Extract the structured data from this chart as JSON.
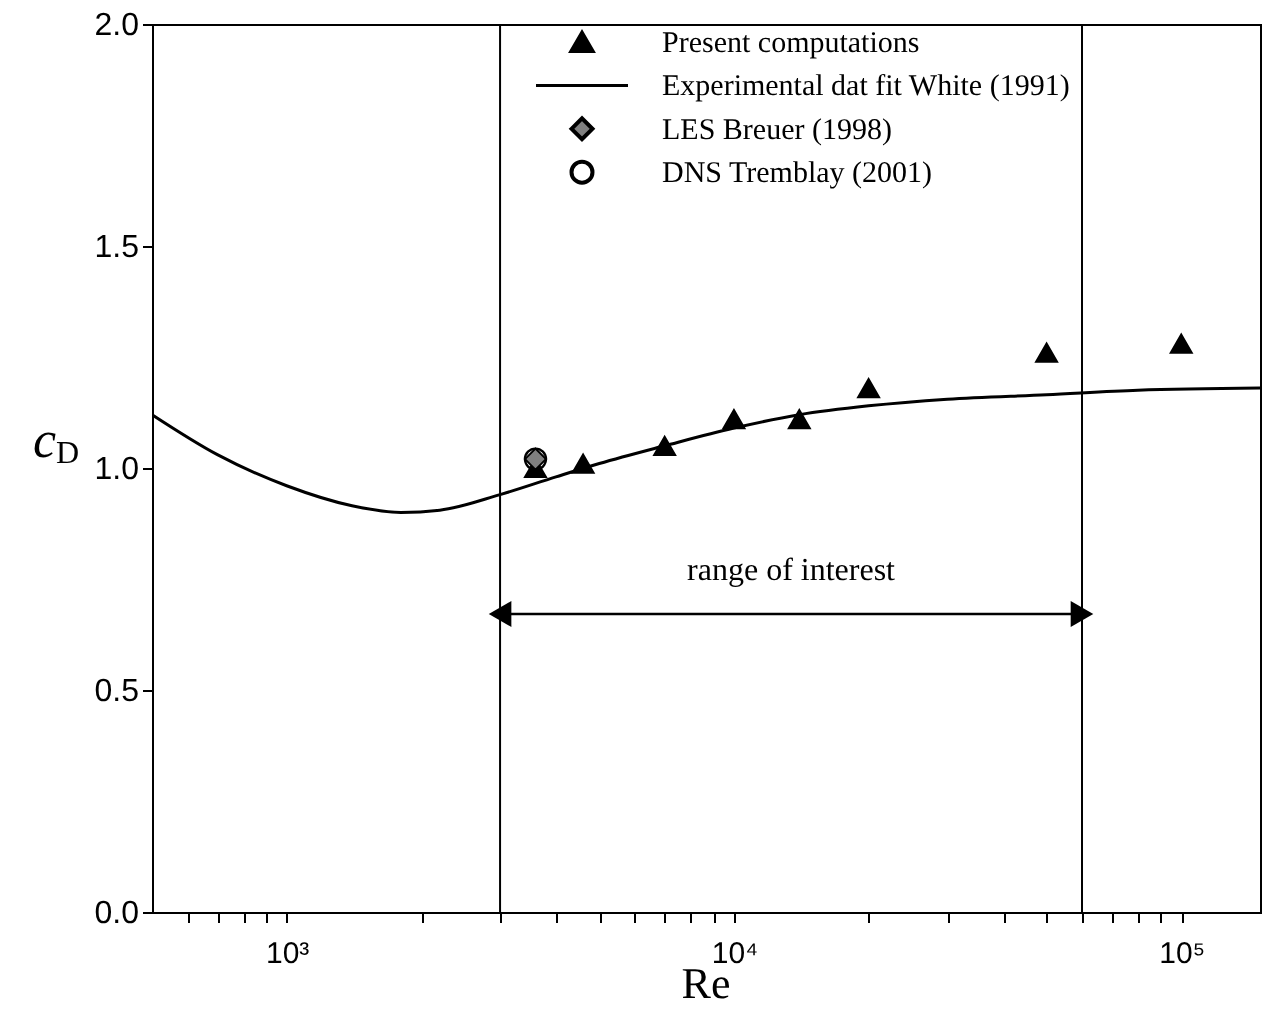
{
  "chart_data": {
    "type": "scatter",
    "xlabel": "Re",
    "ylabel": "c$_{D}$",
    "log": "x",
    "xlim": [
      500,
      150000
    ],
    "xticks": [
      {
        "value": 600,
        "label": null
      },
      {
        "value": 700,
        "label": null
      },
      {
        "value": 800,
        "label": null
      },
      {
        "value": 900,
        "label": null
      },
      {
        "value": 1000,
        "label": "10³"
      },
      {
        "value": 2000,
        "label": null
      },
      {
        "value": 3000,
        "label": null
      },
      {
        "value": 4000,
        "label": null
      },
      {
        "value": 5000,
        "label": null
      },
      {
        "value": 6000,
        "label": null
      },
      {
        "value": 7000,
        "label": null
      },
      {
        "value": 8000,
        "label": null
      },
      {
        "value": 9000,
        "label": null
      },
      {
        "value": 10000,
        "label": "10⁴"
      },
      {
        "value": 20000,
        "label": null
      },
      {
        "value": 30000,
        "label": null
      },
      {
        "value": 40000,
        "label": null
      },
      {
        "value": 50000,
        "label": null
      },
      {
        "value": 60000,
        "label": null
      },
      {
        "value": 70000,
        "label": null
      },
      {
        "value": 80000,
        "label": null
      },
      {
        "value": 90000,
        "label": null
      },
      {
        "value": 100000,
        "label": "10⁵"
      }
    ],
    "ylim": [
      0,
      2
    ],
    "yticks": [
      {
        "value": 0,
        "label": "0.0"
      },
      {
        "value": 0.5,
        "label": "0.5"
      },
      {
        "value": 1,
        "label": "1.0"
      },
      {
        "value": 1.5,
        "label": "1.5"
      },
      {
        "value": 2,
        "label": "2.0"
      }
    ],
    "grid": false,
    "legend": "top right",
    "series": [
      {
        "name": "Present computations",
        "marker": "triangle",
        "color": "#000000",
        "x": [
          3600,
          4600,
          7000,
          10000,
          14000,
          20000,
          50000,
          100000
        ],
        "values": [
          1.0,
          1.01,
          1.05,
          1.11,
          1.11,
          1.18,
          1.26,
          1.28
        ]
      },
      {
        "name": "Experimental dat fit White (1991)",
        "type": "line",
        "marker": "none",
        "color": "#000000",
        "x": [
          500,
          700,
          1000,
          1400,
          1800,
          2200,
          3000,
          4000,
          5000,
          7000,
          10000,
          14000,
          20000,
          30000,
          50000,
          80000,
          150000
        ],
        "values": [
          1.12,
          1.03,
          0.96,
          0.915,
          0.9,
          0.905,
          0.94,
          0.98,
          1.01,
          1.05,
          1.09,
          1.12,
          1.14,
          1.155,
          1.165,
          1.175,
          1.18
        ]
      },
      {
        "name": "LES Breuer (1998)",
        "marker": "diamond",
        "color": "#808080",
        "x": [
          3600
        ],
        "values": [
          1.02
        ]
      },
      {
        "name": "DNS Tremblay (2001)",
        "marker": "circle",
        "color": "#000000",
        "x": [
          3600
        ],
        "values": [
          1.02
        ]
      }
    ],
    "ref_lines": [
      {
        "axis": "x",
        "value": 3000,
        "color": "#000000"
      },
      {
        "axis": "x",
        "value": 60000,
        "color": "#000000"
      }
    ],
    "annotations": [
      "range of interest"
    ]
  }
}
